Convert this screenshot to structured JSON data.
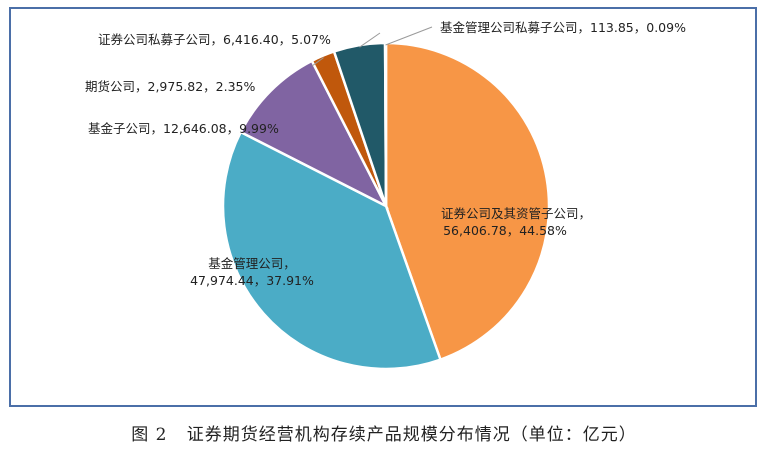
{
  "caption": "图 2   证券期货经营机构存续产品规模分布情况（单位：亿元）",
  "chart_data": {
    "type": "pie",
    "title": "",
    "slices": [
      {
        "name": "证券公司及其资管子公司",
        "value": 56406.78,
        "value_text": "56,406.78",
        "percent": 44.58,
        "percent_text": "44.58%",
        "color": "#f79646"
      },
      {
        "name": "基金管理公司",
        "value": 47974.44,
        "value_text": "47,974.44",
        "percent": 37.91,
        "percent_text": "37.91%",
        "color": "#4bacc6"
      },
      {
        "name": "基金子公司",
        "value": 12646.08,
        "value_text": "12,646.08",
        "percent": 9.99,
        "percent_text": "9.99%",
        "color": "#8064a2"
      },
      {
        "name": "期货公司",
        "value": 2975.82,
        "value_text": "2,975.82",
        "percent": 2.35,
        "percent_text": "2.35%",
        "color": "#c0580c"
      },
      {
        "name": "证券公司私募子公司",
        "value": 6416.4,
        "value_text": "6,416.40",
        "percent": 5.07,
        "percent_text": "5.07%",
        "color": "#215968"
      },
      {
        "name": "基金管理公司私募子公司",
        "value": 113.85,
        "value_text": "113.85",
        "percent": 0.09,
        "percent_text": "0.09%",
        "color": "#4f81bd"
      }
    ],
    "labels": [
      {
        "line1": "证券公司及其资管子公司，",
        "line2": "56,406.78，44.58%"
      },
      {
        "line1": "基金管理公司，",
        "line2": "47,974.44，37.91%"
      },
      {
        "line1": "基金子公司，12,646.08，9.99%"
      },
      {
        "line1": "期货公司，2,975.82，2.35%"
      },
      {
        "line1": "证券公司私募子公司，6,416.40，5.07%"
      },
      {
        "line1": "基金管理公司私募子公司，113.85，0.09%"
      }
    ]
  }
}
